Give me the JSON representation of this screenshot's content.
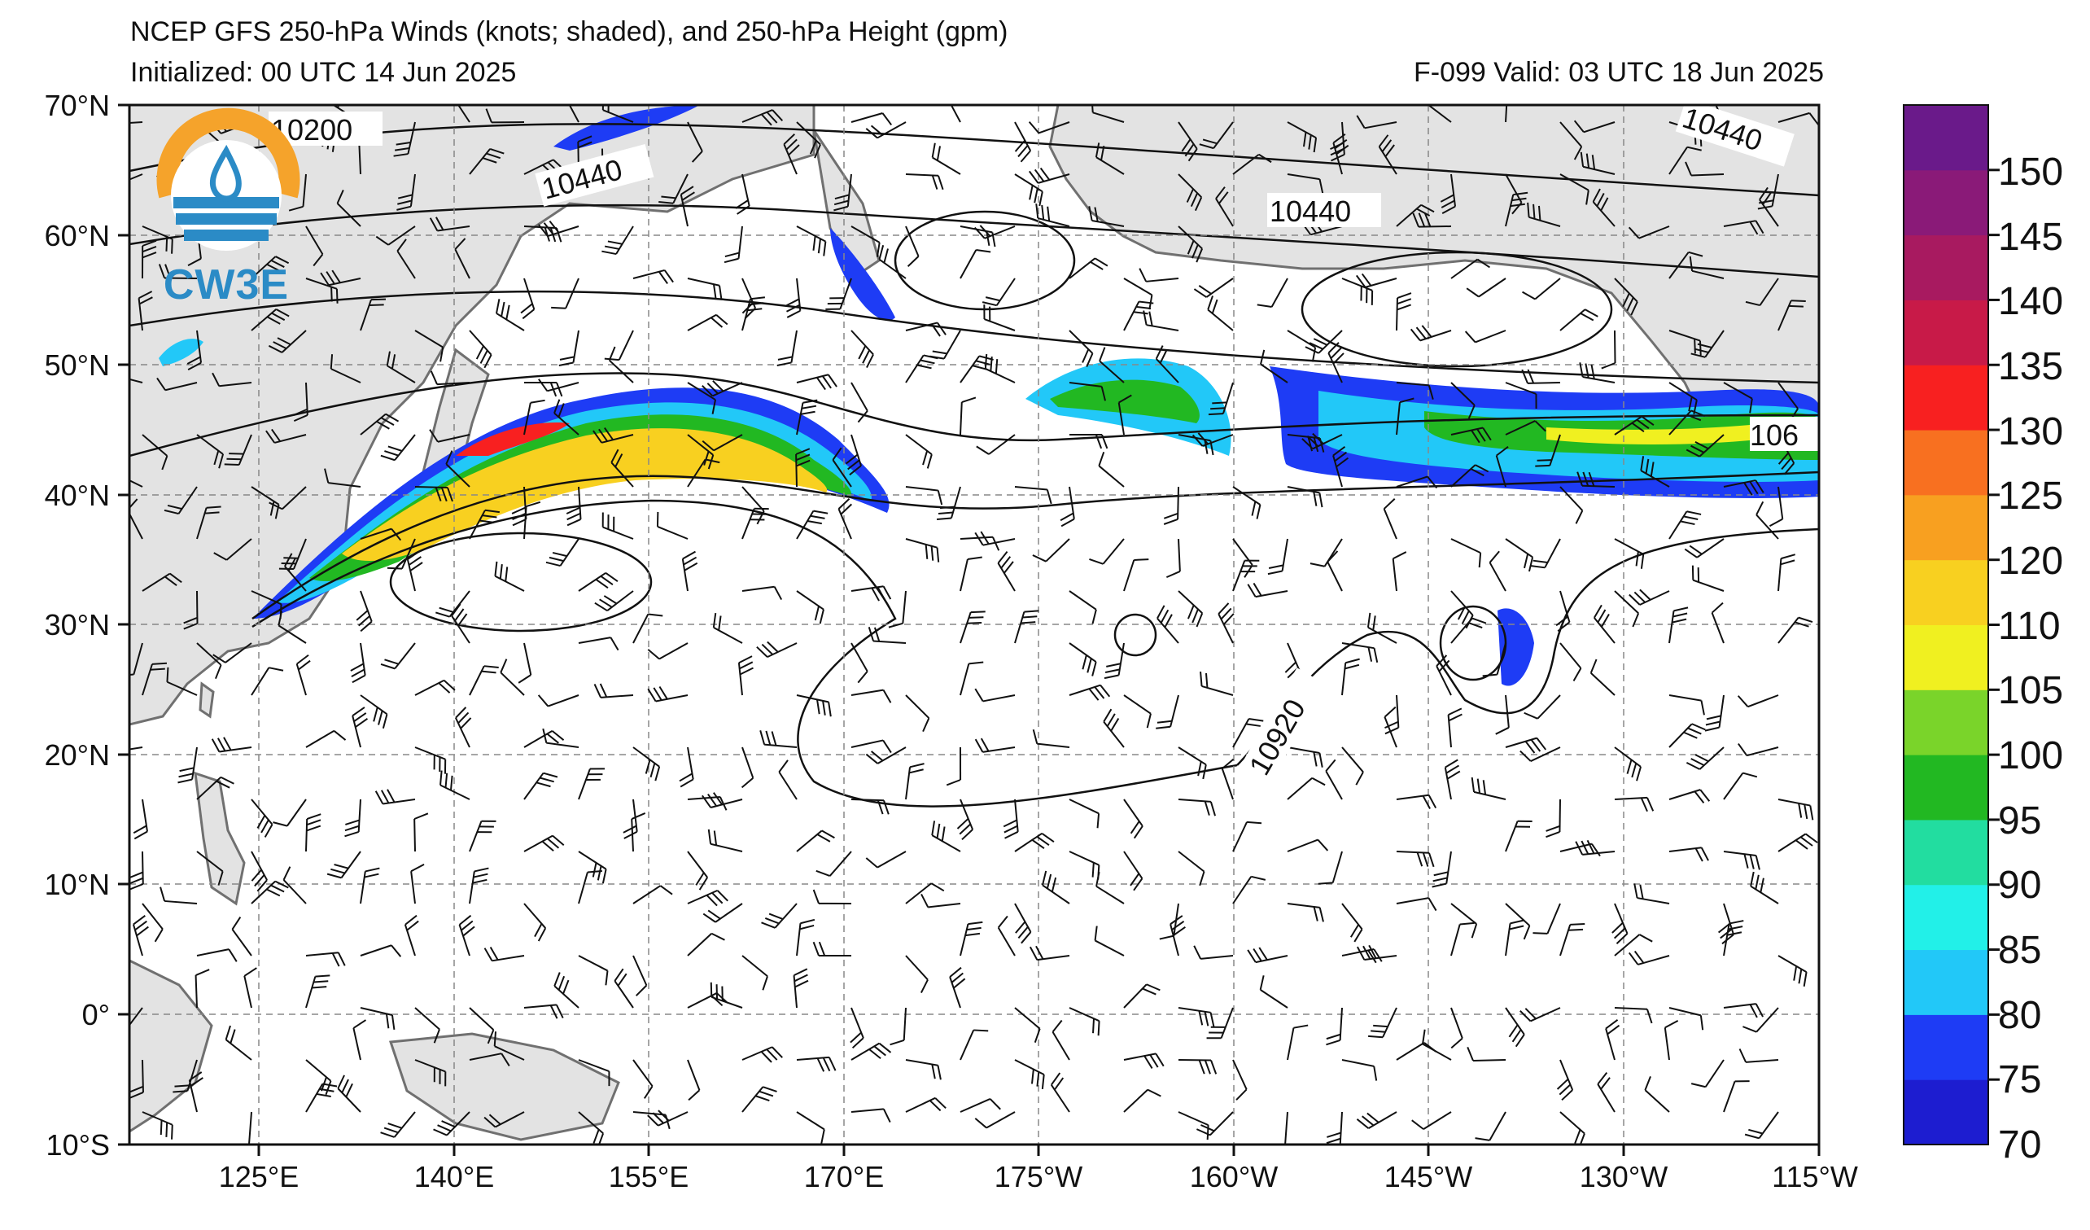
{
  "header": {
    "title": "NCEP GFS 250-hPa Winds (knots; shaded), and 250-hPa Height (gpm)",
    "initialized": "Initialized: 00 UTC 14 Jun 2025",
    "valid": "F-099  Valid: 03 UTC 18 Jun 2025"
  },
  "logo": {
    "text": "CW3E"
  },
  "map": {
    "lat_labels": [
      "70°N",
      "60°N",
      "50°N",
      "40°N",
      "30°N",
      "20°N",
      "10°N",
      "0°",
      "10°S"
    ],
    "lon_labels": [
      "125°E",
      "140°E",
      "155°E",
      "170°E",
      "175°W",
      "160°W",
      "145°W",
      "130°W",
      "115°W"
    ],
    "lat_range": [
      -10,
      70
    ],
    "lon_range": [
      115,
      245
    ],
    "contour_labels": [
      "10200",
      "10440",
      "10440",
      "10440",
      "10920",
      "106"
    ],
    "land_color": "#e3e3e3",
    "grid_style": "dashed gray"
  },
  "colorbar": {
    "ticks": [
      "150",
      "145",
      "140",
      "135",
      "130",
      "125",
      "120",
      "110",
      "105",
      "100",
      "95",
      "90",
      "85",
      "80",
      "75",
      "70"
    ],
    "colors": [
      "#1d1dd0",
      "#1e3cf5",
      "#22c8f8",
      "#22f0e8",
      "#22dda0",
      "#22b822",
      "#7ad42a",
      "#f0f020",
      "#f8d020",
      "#f8a020",
      "#f87020",
      "#f82020",
      "#c81a48",
      "#a81a60",
      "#8a1a78",
      "#6a1a8a"
    ]
  }
}
